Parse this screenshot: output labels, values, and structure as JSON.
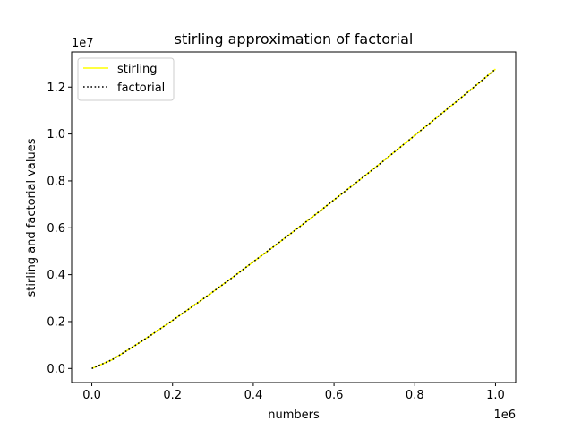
{
  "chart_data": {
    "type": "line",
    "title": "stirling approximation of factorial",
    "xlabel": "numbers",
    "ylabel": "stirling and factorial values",
    "x_offset_label": "1e6",
    "y_offset_label": "1e7",
    "xlim": [
      -50000,
      1050000
    ],
    "ylim": [
      -600000,
      13500000
    ],
    "x_ticks": [
      0,
      200000,
      400000,
      600000,
      800000,
      1000000
    ],
    "x_tick_labels": [
      "0.0",
      "0.2",
      "0.4",
      "0.6",
      "0.8",
      "1.0"
    ],
    "y_ticks": [
      0,
      2000000,
      4000000,
      6000000,
      8000000,
      10000000,
      12000000
    ],
    "y_tick_labels": [
      "0.0",
      "0.2",
      "0.4",
      "0.6",
      "0.8",
      "1.0",
      "1.2"
    ],
    "legend_position": "top-left",
    "grid": false,
    "x": [
      1,
      50000,
      100000,
      150000,
      200000,
      250000,
      300000,
      350000,
      400000,
      450000,
      500000,
      550000,
      600000,
      650000,
      700000,
      750000,
      800000,
      850000,
      900000,
      950000,
      1000000
    ],
    "series": [
      {
        "name": "stirling",
        "color": "#ffff00",
        "style": "solid",
        "values": [
          0,
          370000,
          900000,
          1460000,
          2050000,
          2650000,
          3270000,
          3900000,
          4550000,
          5190000,
          5850000,
          6510000,
          7190000,
          7860000,
          8540000,
          9240000,
          9940000,
          10640000,
          11340000,
          12050000,
          12770000
        ]
      },
      {
        "name": "factorial",
        "color": "#000000",
        "style": "dotted",
        "values": [
          0,
          370000,
          900000,
          1460000,
          2050000,
          2650000,
          3270000,
          3900000,
          4550000,
          5190000,
          5850000,
          6510000,
          7190000,
          7860000,
          8540000,
          9240000,
          9940000,
          10640000,
          11340000,
          12050000,
          12770000
        ]
      }
    ]
  }
}
